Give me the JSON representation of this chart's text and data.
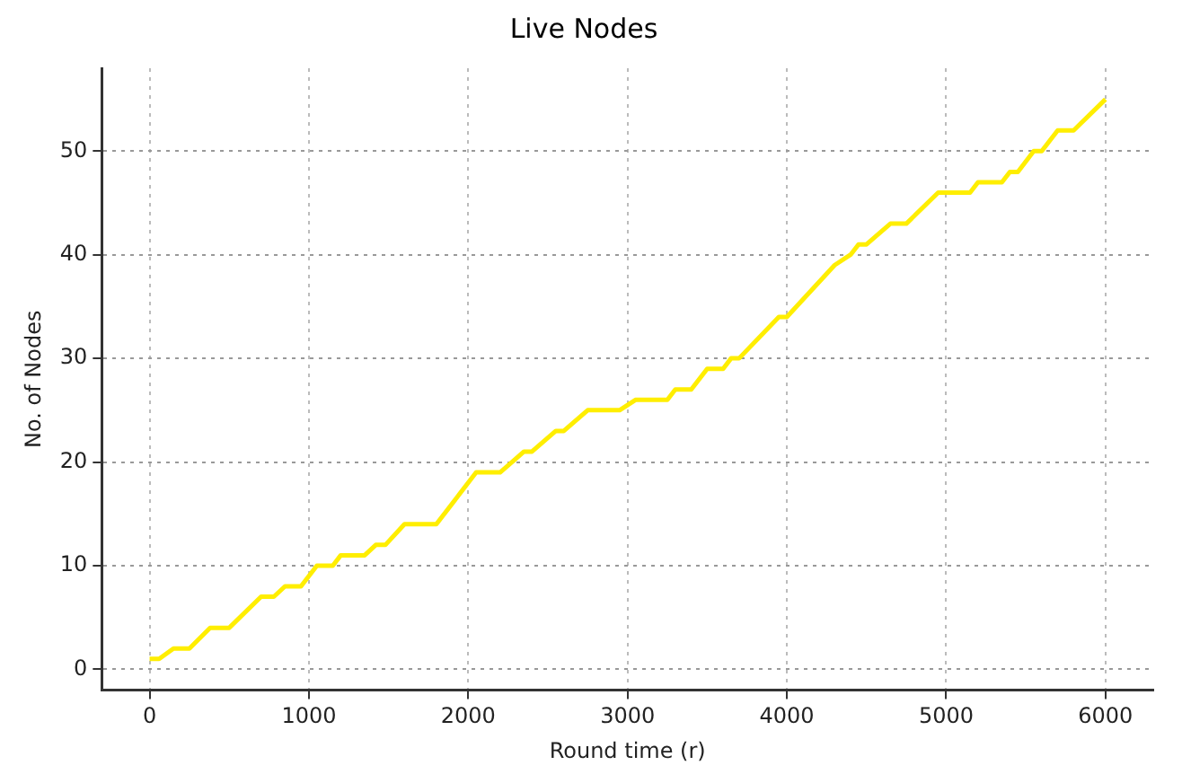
{
  "chart_data": {
    "type": "line",
    "title": "Live Nodes",
    "xlabel": "Round time (r)",
    "ylabel": "No. of Nodes",
    "xlim": [
      -300,
      6300
    ],
    "xticks": [
      0,
      1000,
      2000,
      3000,
      4000,
      5000,
      6000
    ],
    "ylim": [
      -2,
      58
    ],
    "yticks": [
      0,
      10,
      20,
      30,
      40,
      50
    ],
    "grid": true,
    "line_style": "solid",
    "marker": "none",
    "series": [
      {
        "color": "#ffee00",
        "x": [
          0,
          60,
          150,
          250,
          380,
          500,
          700,
          780,
          850,
          950,
          1050,
          1150,
          1200,
          1350,
          1420,
          1480,
          1600,
          1800,
          2050,
          2200,
          2350,
          2400,
          2550,
          2600,
          2750,
          2950,
          3050,
          3250,
          3300,
          3400,
          3500,
          3600,
          3650,
          3700,
          3950,
          4000,
          4300,
          4400,
          4450,
          4500,
          4650,
          4750,
          4950,
          5150,
          5200,
          5350,
          5400,
          5450,
          5550,
          5600,
          5700,
          5800,
          6000
        ],
        "values": [
          1,
          1,
          2,
          2,
          4,
          4,
          7,
          7,
          8,
          8,
          10,
          10,
          11,
          11,
          12,
          12,
          14,
          14,
          19,
          19,
          21,
          21,
          23,
          23,
          25,
          25,
          26,
          26,
          27,
          27,
          29,
          29,
          30,
          30,
          34,
          34,
          39,
          40,
          41,
          41,
          43,
          43,
          46,
          46,
          47,
          47,
          48,
          48,
          50,
          50,
          52,
          52,
          55
        ]
      }
    ]
  }
}
